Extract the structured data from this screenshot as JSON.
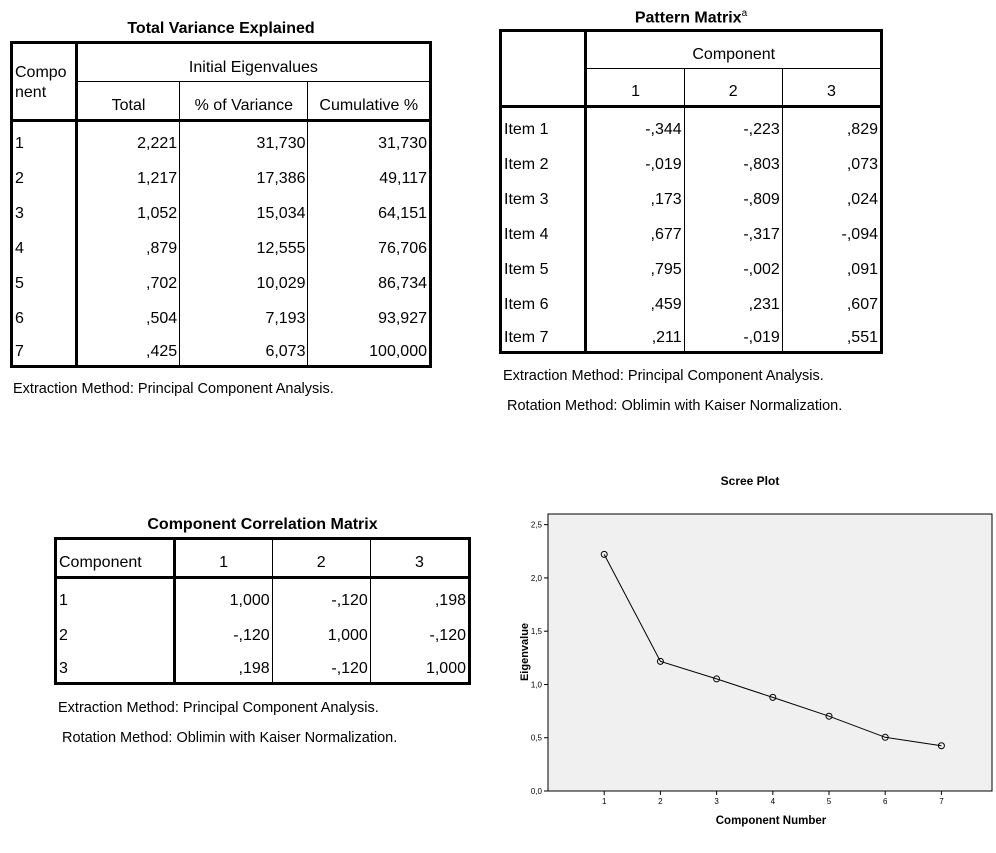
{
  "total_variance": {
    "title": "Total Variance Explained",
    "col_component": [
      "Compo",
      "nent"
    ],
    "group_header": "Initial Eigenvalues",
    "columns": [
      "Total",
      "% of Variance",
      "Cumulative %"
    ],
    "rows": [
      [
        "1",
        "2,221",
        "31,730",
        "31,730"
      ],
      [
        "2",
        "1,217",
        "17,386",
        "49,117"
      ],
      [
        "3",
        "1,052",
        "15,034",
        "64,151"
      ],
      [
        "4",
        ",879",
        "12,555",
        "76,706"
      ],
      [
        "5",
        ",702",
        "10,029",
        "86,734"
      ],
      [
        "6",
        ",504",
        "7,193",
        "93,927"
      ],
      [
        "7",
        ",425",
        "6,073",
        "100,000"
      ]
    ],
    "note": "Extraction Method: Principal Component Analysis."
  },
  "pattern_matrix": {
    "title": "Pattern Matrix",
    "title_sup": "a",
    "group_header": "Component",
    "columns": [
      "1",
      "2",
      "3"
    ],
    "rows": [
      [
        "Item 1",
        "-,344",
        "-,223",
        ",829"
      ],
      [
        "Item 2",
        "-,019",
        "-,803",
        ",073"
      ],
      [
        "Item 3",
        ",173",
        "-,809",
        ",024"
      ],
      [
        "Item 4",
        ",677",
        "-,317",
        "-,094"
      ],
      [
        "Item 5",
        ",795",
        "-,002",
        ",091"
      ],
      [
        "Item 6",
        ",459",
        ",231",
        ",607"
      ],
      [
        "Item 7",
        ",211",
        "-,019",
        ",551"
      ]
    ],
    "note1": "Extraction Method: Principal Component Analysis.",
    "note2": "Rotation Method: Oblimin with Kaiser Normalization."
  },
  "correlation_matrix": {
    "title": "Component Correlation Matrix",
    "header": [
      "Component",
      "1",
      "2",
      "3"
    ],
    "rows": [
      [
        "1",
        "1,000",
        "-,120",
        ",198"
      ],
      [
        "2",
        "-,120",
        "1,000",
        "-,120"
      ],
      [
        "3",
        ",198",
        "-,120",
        "1,000"
      ]
    ],
    "note1": "Extraction Method: Principal Component Analysis.",
    "note2": "Rotation Method: Oblimin with Kaiser Normalization."
  },
  "chart_data": {
    "type": "line",
    "title": "Scree Plot",
    "xlabel": "Component Number",
    "ylabel": "Eigenvalue",
    "x": [
      1,
      2,
      3,
      4,
      5,
      6,
      7
    ],
    "series": [
      {
        "values": [
          2.221,
          1.217,
          1.052,
          0.879,
          0.702,
          0.504,
          0.425
        ]
      }
    ],
    "xticks": [
      "1",
      "2",
      "3",
      "4",
      "5",
      "6",
      "7"
    ],
    "yticks": [
      0,
      0.5,
      1,
      1.5,
      2,
      2.5
    ],
    "ytick_labels": [
      "0,0",
      "0,5",
      "1,0",
      "1,5",
      "2,0",
      "2,5"
    ],
    "xlim": [
      0,
      7.9
    ],
    "ylim": [
      0,
      2.6
    ],
    "grid": false,
    "plot_background": "#f0f0f0",
    "line_color": "#000000",
    "marker": "open-circle"
  }
}
